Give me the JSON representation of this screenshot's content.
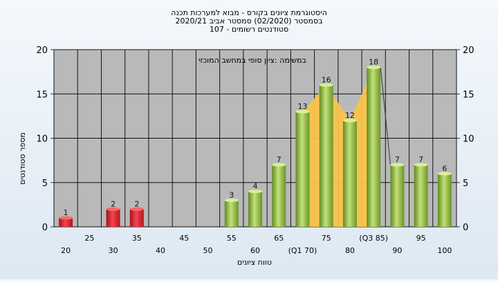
{
  "chart_data": {
    "type": "bar",
    "title_lines": [
      "היסטוגרמת ציונים בקורס - מבוא למערכות תכנה",
      "בסמסטר  (02/2020)  סמסטר אביב 2020/21",
      "סטודנטים רשומים - 107"
    ],
    "annotation": "במשימה :ציון סופי במחשב המוכזי",
    "xlabel": "טווח ציונים",
    "ylabel": "מספר סטודנטים",
    "ylim": [
      0,
      20
    ],
    "yticks": [
      0,
      5,
      10,
      15,
      20
    ],
    "grid": true,
    "categories": [
      "20",
      "25",
      "30",
      "35",
      "40",
      "45",
      "50",
      "55",
      "60",
      "65",
      "70",
      "75",
      "80",
      "85",
      "90",
      "95",
      "100"
    ],
    "x_tick_labels_lower": [
      "20",
      "30",
      "40",
      "50",
      "60",
      "(Q1 70)",
      "80",
      "90",
      "100"
    ],
    "x_tick_labels_upper": [
      "25",
      "35",
      "45",
      "55",
      "65",
      "75",
      "(Q3 85)",
      "95"
    ],
    "values": [
      1,
      0,
      2,
      2,
      0,
      0,
      0,
      3,
      4,
      7,
      13,
      16,
      12,
      18,
      7,
      7,
      6
    ],
    "bar_color_failing": "#e02a35",
    "bar_color_passing": "#8dbb3c",
    "interquartile_band_color": "#f9c34a",
    "plot_background": "#b9b9b9"
  }
}
